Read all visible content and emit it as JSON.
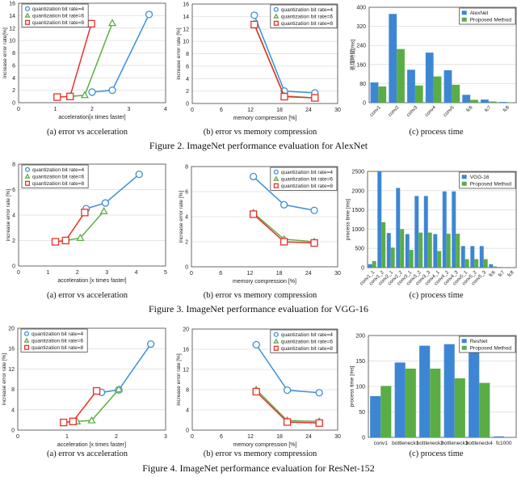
{
  "figures": [
    {
      "caption": "Figure 2. ImageNet performance evaluation for AlexNet",
      "subcaptions": [
        "(a)  error vs acceleration",
        "(b)  error vs memory compression",
        "(c)  process time"
      ]
    },
    {
      "caption": "Figure 3. ImageNet performance evaluation for VGG-16",
      "subcaptions": [
        "(a)  error vs acceleration",
        "(b)  error vs memory compression",
        "(c)  process time"
      ]
    },
    {
      "caption": "Figure 4. ImageNet performance evaluation for ResNet-152",
      "subcaptions": [
        "(a)  error vs acceleration",
        "(b)  error vs memory compression",
        "(c)  process time"
      ]
    }
  ],
  "colors": {
    "q4": "#3b8fd9",
    "q6": "#5cb040",
    "q8": "#e8302a",
    "bar_baseline": "#3d86d4",
    "bar_proposed": "#5aad45"
  },
  "chart_data": [
    {
      "type": "line",
      "xlabel": "acceleration[x times faster]",
      "ylabel": "increase error rate[%]",
      "xlim": [
        0,
        4
      ],
      "xticks": [
        0,
        1,
        2,
        3,
        4
      ],
      "ylim": [
        0,
        16
      ],
      "yticks": [
        0,
        2,
        4,
        6,
        8,
        10,
        12,
        14,
        16
      ],
      "grid": "horizontal",
      "legend": "top-left",
      "series": [
        {
          "name": "quantization bit rate=4",
          "marker": "circle",
          "x": [
            2.0,
            2.55,
            3.55
          ],
          "y": [
            1.7,
            2.0,
            14.2
          ]
        },
        {
          "name": "quantization bit rate=6",
          "marker": "triangle",
          "x": [
            1.4,
            1.8,
            2.55
          ],
          "y": [
            1.0,
            1.2,
            12.8
          ]
        },
        {
          "name": "quantization bit rate=8",
          "marker": "square",
          "x": [
            1.05,
            1.4,
            1.98
          ],
          "y": [
            0.9,
            1.0,
            12.7
          ]
        }
      ]
    },
    {
      "type": "line",
      "xlabel": "memory compression [%]",
      "ylabel": "increase error rate [%]",
      "xlim": [
        0,
        30
      ],
      "xticks": [
        0,
        6,
        12,
        18,
        24,
        30
      ],
      "ylim": [
        0,
        16
      ],
      "yticks": [
        0,
        2,
        4,
        6,
        8,
        10,
        12,
        14,
        16
      ],
      "grid": "horizontal",
      "legend": "top-right",
      "series": [
        {
          "name": "quantization bit rate=4",
          "marker": "circle",
          "x": [
            12.8,
            19,
            25.3
          ],
          "y": [
            14.2,
            2.0,
            1.7
          ]
        },
        {
          "name": "quantization bit rate=6",
          "marker": "triangle",
          "x": [
            12.8,
            19,
            25.3
          ],
          "y": [
            12.8,
            1.2,
            0.9
          ]
        },
        {
          "name": "quantization bit rate=8",
          "marker": "square",
          "x": [
            12.8,
            19,
            25.3
          ],
          "y": [
            12.7,
            1.1,
            0.9
          ]
        }
      ]
    },
    {
      "type": "bar",
      "xlabel": "",
      "ylabel": "処理時間[ms]",
      "ylim": [
        0,
        400
      ],
      "yticks": [
        0,
        80,
        160,
        240,
        320,
        400
      ],
      "grid": "horizontal",
      "legend": "top-right",
      "label_rotation": -45,
      "categories": [
        "conv1",
        "conv2",
        "conv3",
        "conv4",
        "conv5",
        "fc6",
        "fc7",
        "fc8"
      ],
      "series": [
        {
          "name": "AlexNet",
          "values": [
            85,
            372,
            138,
            210,
            136,
            33,
            13,
            3
          ]
        },
        {
          "name": "Proposed Method",
          "values": [
            68,
            225,
            72,
            110,
            75,
            12,
            5,
            1
          ]
        }
      ]
    },
    {
      "type": "line",
      "xlabel": "acceleration [x times faster]",
      "ylabel": "increase error rate [%]",
      "xlim": [
        0,
        5
      ],
      "xticks": [
        0,
        1,
        2,
        3,
        4,
        5
      ],
      "ylim": [
        0,
        8
      ],
      "yticks": [
        0,
        2,
        4,
        6,
        8
      ],
      "grid": "horizontal",
      "legend": "top-left",
      "series": [
        {
          "name": "quantization bit rate=4",
          "marker": "circle",
          "x": [
            2.3,
            2.95,
            4.1
          ],
          "y": [
            4.5,
            4.95,
            7.2
          ]
        },
        {
          "name": "quantization bit rate=6",
          "marker": "triangle",
          "x": [
            1.6,
            2.1,
            2.9
          ],
          "y": [
            2.0,
            2.2,
            4.3
          ]
        },
        {
          "name": "quantization bit rate=8",
          "marker": "square",
          "x": [
            1.25,
            1.6,
            2.25
          ],
          "y": [
            1.9,
            2.0,
            4.2
          ]
        }
      ]
    },
    {
      "type": "line",
      "xlabel": "memory compression [%]",
      "ylabel": "increase error rate [%]",
      "xlim": [
        0,
        30
      ],
      "xticks": [
        0,
        6,
        12,
        18,
        24,
        30
      ],
      "ylim": [
        0,
        8
      ],
      "yticks": [
        0,
        2,
        4,
        6,
        8
      ],
      "grid": "horizontal",
      "legend": "top-right",
      "series": [
        {
          "name": "quantization bit rate=4",
          "marker": "circle",
          "x": [
            12.7,
            19,
            25.2
          ],
          "y": [
            7.2,
            4.95,
            4.5
          ]
        },
        {
          "name": "quantization bit rate=6",
          "marker": "triangle",
          "x": [
            12.7,
            19,
            25.2
          ],
          "y": [
            4.3,
            2.2,
            2.0
          ]
        },
        {
          "name": "quantization bit rate=8",
          "marker": "square",
          "x": [
            12.7,
            19,
            25.2
          ],
          "y": [
            4.2,
            2.0,
            1.9
          ]
        }
      ]
    },
    {
      "type": "bar",
      "xlabel": "",
      "ylabel": "process time [ms]",
      "ylim": [
        0,
        2500
      ],
      "yticks": [
        0,
        500,
        1000,
        1500,
        2000,
        2500
      ],
      "grid": "horizontal",
      "legend": "top-right",
      "label_rotation": -45,
      "categories": [
        "conv1_1",
        "conv1_2",
        "conv2_1",
        "conv2_2",
        "conv3_1",
        "conv3_2",
        "conv3_3",
        "conv4_1",
        "conv4_2",
        "conv4_3",
        "conv5_1",
        "conv5_2",
        "conv5_3",
        "fc6",
        "fc7",
        "fc8"
      ],
      "series": [
        {
          "name": "VGG-16",
          "values": [
            90,
            2500,
            900,
            2070,
            870,
            1860,
            1860,
            870,
            1980,
            1980,
            560,
            560,
            560,
            90,
            15,
            3
          ]
        },
        {
          "name": "Proposed Method",
          "values": [
            170,
            1180,
            520,
            1000,
            460,
            910,
            910,
            430,
            880,
            880,
            220,
            220,
            220,
            30,
            5,
            1
          ]
        }
      ]
    },
    {
      "type": "line",
      "xlabel": "acceleration [x times faster]",
      "ylabel": "increase error rate [%]",
      "xlim": [
        0,
        3
      ],
      "xticks": [
        0,
        1,
        2,
        3
      ],
      "ylim": [
        0,
        20
      ],
      "yticks": [
        0,
        4,
        8,
        12,
        16,
        20
      ],
      "grid": "horizontal",
      "legend": "top-left",
      "series": [
        {
          "name": "quantization bit rate=4",
          "marker": "circle",
          "x": [
            1.7,
            2.05,
            2.7
          ],
          "y": [
            7.4,
            7.9,
            16.9
          ]
        },
        {
          "name": "quantization bit rate=6",
          "marker": "triangle",
          "x": [
            1.2,
            1.5,
            2.05
          ],
          "y": [
            1.7,
            1.9,
            8.0
          ]
        },
        {
          "name": "quantization bit rate=8",
          "marker": "square",
          "x": [
            0.93,
            1.12,
            1.6
          ],
          "y": [
            1.5,
            1.7,
            7.7
          ]
        }
      ]
    },
    {
      "type": "line",
      "xlabel": "memory compression [%]",
      "ylabel": "increase error rate [%]",
      "xlim": [
        0,
        30
      ],
      "xticks": [
        0,
        6,
        12,
        18,
        24,
        30
      ],
      "ylim": [
        0,
        20
      ],
      "yticks": [
        0,
        4,
        8,
        12,
        16,
        20
      ],
      "grid": "horizontal",
      "legend": "top-right",
      "series": [
        {
          "name": "quantization bit rate=4",
          "marker": "circle",
          "x": [
            13.2,
            19.6,
            26.2
          ],
          "y": [
            16.9,
            7.9,
            7.4
          ]
        },
        {
          "name": "quantization bit rate=6",
          "marker": "triangle",
          "x": [
            13.2,
            19.6,
            26.2
          ],
          "y": [
            8.0,
            1.9,
            1.7
          ]
        },
        {
          "name": "quantization bit rate=8",
          "marker": "square",
          "x": [
            13.2,
            19.6,
            26.2
          ],
          "y": [
            7.6,
            1.6,
            1.4
          ]
        }
      ]
    },
    {
      "type": "bar",
      "xlabel": "",
      "ylabel": "process time [ms]",
      "ylim": [
        0,
        200
      ],
      "yticks": [
        0,
        50,
        100,
        150,
        200
      ],
      "grid": "horizontal",
      "legend": "top-right",
      "label_rotation": 0,
      "categories": [
        "conv1",
        "bottleneck1",
        "bottleneck2",
        "bottleneck3",
        "bottleneck4",
        "fc1000"
      ],
      "series": [
        {
          "name": "ResNet",
          "values": [
            81,
            147,
            180,
            183,
            175,
            2
          ]
        },
        {
          "name": "Proposed Method",
          "values": [
            101,
            135,
            135,
            116,
            107,
            0
          ]
        }
      ]
    }
  ]
}
